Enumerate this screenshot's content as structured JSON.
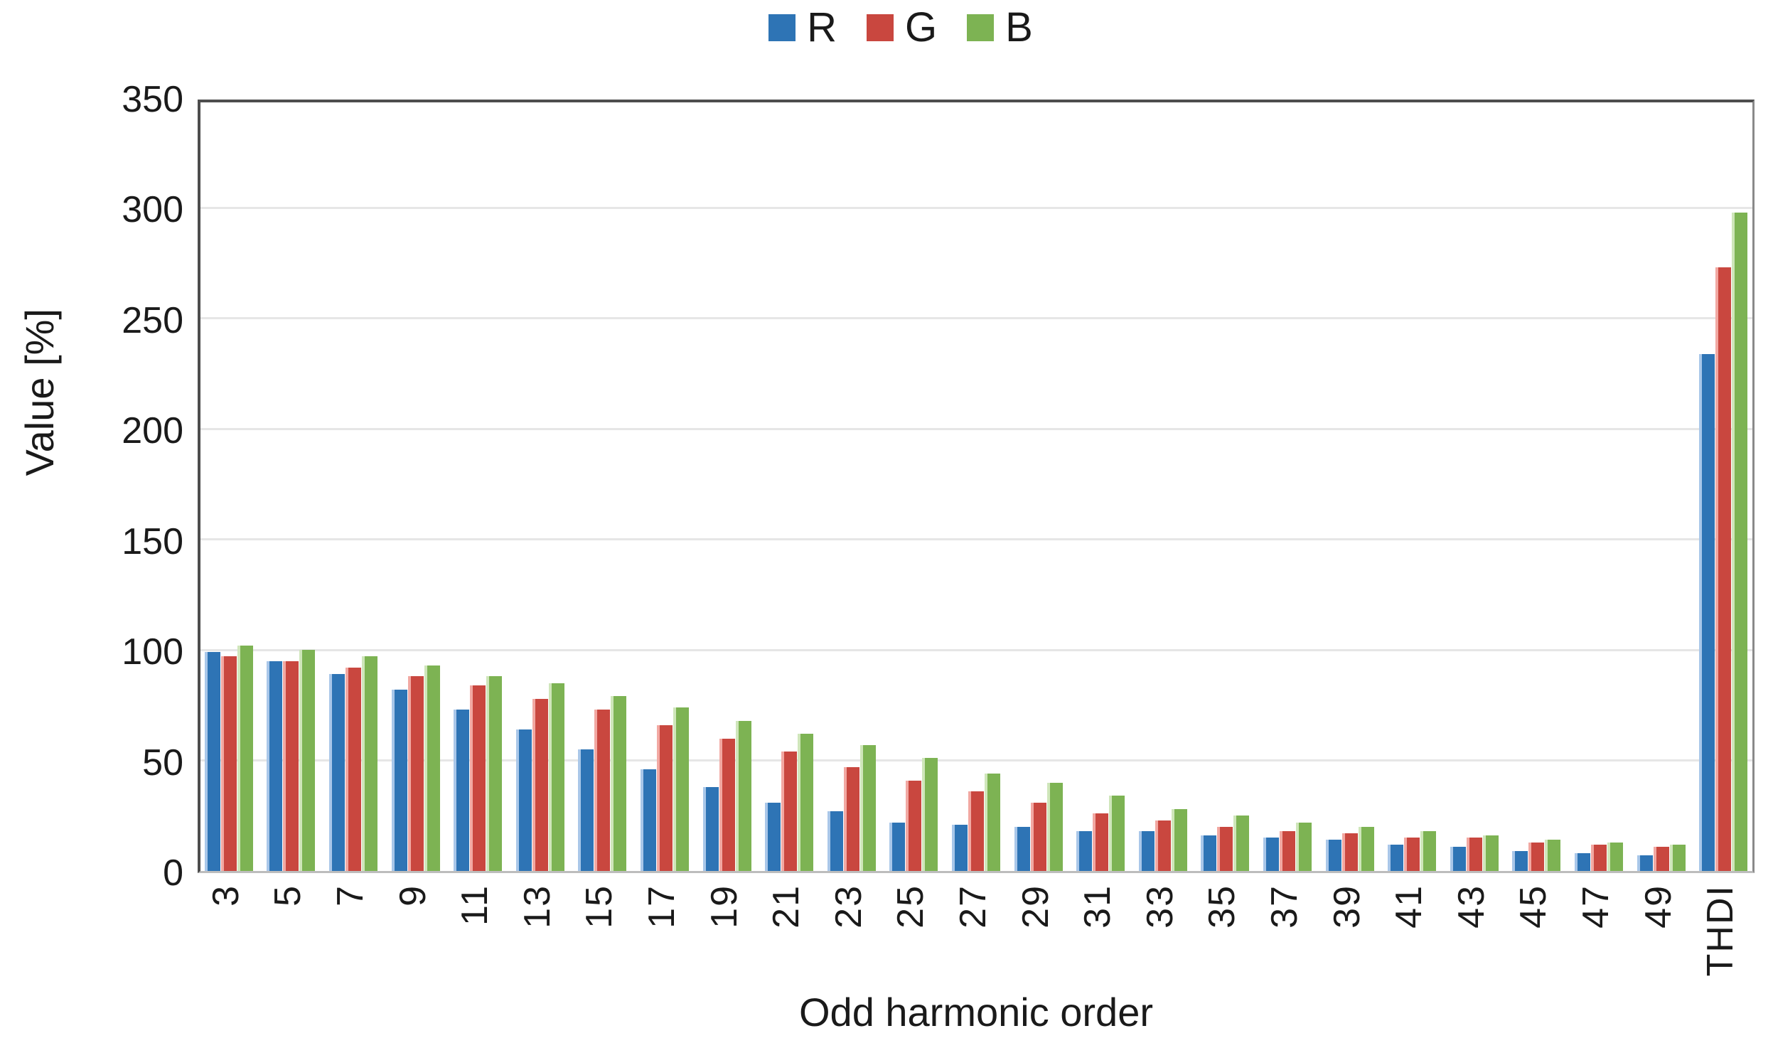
{
  "chart_data": {
    "type": "bar",
    "title": "",
    "xlabel": "Odd harmonic order",
    "ylabel": "Value [%]",
    "ylim": [
      0,
      350
    ],
    "ytick_step": 50,
    "yticks": [
      "0",
      "50",
      "100",
      "150",
      "200",
      "250",
      "300",
      "350"
    ],
    "grid": "horizontal",
    "legend_position": "top-center",
    "categories": [
      "3",
      "5",
      "7",
      "9",
      "11",
      "13",
      "15",
      "17",
      "19",
      "21",
      "23",
      "25",
      "27",
      "29",
      "31",
      "33",
      "35",
      "37",
      "39",
      "41",
      "43",
      "45",
      "47",
      "49",
      "THDI"
    ],
    "series": [
      {
        "name": "R",
        "color": "#2E74B5",
        "color_light": "#A9C7E9",
        "values": [
          99,
          95,
          89,
          82,
          73,
          64,
          55,
          46,
          38,
          31,
          27,
          22,
          21,
          20,
          18,
          18,
          16,
          15,
          14,
          12,
          11,
          9,
          8,
          7,
          234
        ]
      },
      {
        "name": "G",
        "color": "#C9473F",
        "color_light": "#F2A8A2",
        "values": [
          97,
          95,
          92,
          88,
          84,
          78,
          73,
          66,
          60,
          54,
          47,
          41,
          36,
          31,
          26,
          23,
          20,
          18,
          17,
          15,
          15,
          13,
          12,
          11,
          273
        ]
      },
      {
        "name": "B",
        "color": "#7DB353",
        "color_light": "#CFE6BA",
        "values": [
          102,
          100,
          97,
          93,
          88,
          85,
          79,
          74,
          68,
          62,
          57,
          51,
          44,
          40,
          34,
          28,
          25,
          22,
          20,
          18,
          16,
          14,
          13,
          12,
          298
        ]
      }
    ]
  }
}
